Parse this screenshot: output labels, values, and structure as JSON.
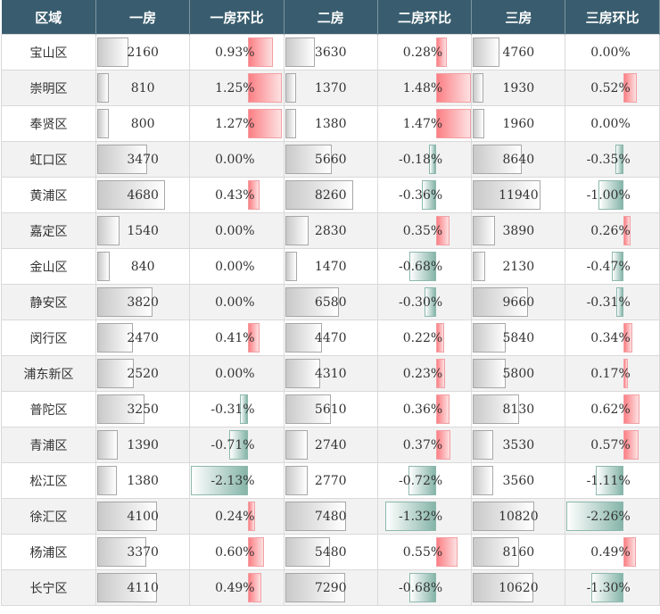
{
  "headers": [
    "区域",
    "一房",
    "一房环比",
    "二房",
    "二房环比",
    "三房",
    "三房环比"
  ],
  "rows": [
    {
      "region": "宝山区",
      "r1": "2160",
      "p1": "0.93%",
      "r2": "3630",
      "p2": "0.28%",
      "r3": "4760",
      "p3": "0.00%"
    },
    {
      "region": "崇明区",
      "r1": "810",
      "p1": "1.25%",
      "r2": "1370",
      "p2": "1.48%",
      "r3": "1930",
      "p3": "0.52%"
    },
    {
      "region": "奉贤区",
      "r1": "800",
      "p1": "1.27%",
      "r2": "1380",
      "p2": "1.47%",
      "r3": "1960",
      "p3": "0.00%"
    },
    {
      "region": "虹口区",
      "r1": "3470",
      "p1": "0.00%",
      "r2": "5660",
      "p2": "-0.18%",
      "r3": "8640",
      "p3": "-0.35%"
    },
    {
      "region": "黄浦区",
      "r1": "4680",
      "p1": "0.43%",
      "r2": "8260",
      "p2": "-0.36%",
      "r3": "11940",
      "p3": "-1.00%"
    },
    {
      "region": "嘉定区",
      "r1": "1540",
      "p1": "0.00%",
      "r2": "2830",
      "p2": "0.35%",
      "r3": "3890",
      "p3": "0.26%"
    },
    {
      "region": "金山区",
      "r1": "840",
      "p1": "0.00%",
      "r2": "1470",
      "p2": "-0.68%",
      "r3": "2130",
      "p3": "-0.47%"
    },
    {
      "region": "静安区",
      "r1": "3820",
      "p1": "0.00%",
      "r2": "6580",
      "p2": "-0.30%",
      "r3": "9660",
      "p3": "-0.31%"
    },
    {
      "region": "闵行区",
      "r1": "2470",
      "p1": "0.41%",
      "r2": "4470",
      "p2": "0.22%",
      "r3": "5840",
      "p3": "0.34%"
    },
    {
      "region": "浦东新区",
      "r1": "2520",
      "p1": "0.00%",
      "r2": "4310",
      "p2": "0.23%",
      "r3": "5800",
      "p3": "0.17%"
    },
    {
      "region": "普陀区",
      "r1": "3250",
      "p1": "-0.31%",
      "r2": "5610",
      "p2": "0.36%",
      "r3": "8130",
      "p3": "0.62%"
    },
    {
      "region": "青浦区",
      "r1": "1390",
      "p1": "-0.71%",
      "r2": "2740",
      "p2": "0.37%",
      "r3": "3530",
      "p3": "0.57%"
    },
    {
      "region": "松江区",
      "r1": "1380",
      "p1": "-2.13%",
      "r2": "2770",
      "p2": "-0.72%",
      "r3": "3560",
      "p3": "-1.11%"
    },
    {
      "region": "徐汇区",
      "r1": "4100",
      "p1": "0.24%",
      "r2": "7480",
      "p2": "-1.32%",
      "r3": "10820",
      "p3": "-2.26%"
    },
    {
      "region": "杨浦区",
      "r1": "3370",
      "p1": "0.60%",
      "r2": "5480",
      "p2": "0.55%",
      "r3": "8160",
      "p3": "0.49%"
    },
    {
      "region": "长宁区",
      "r1": "4110",
      "p1": "0.49%",
      "r2": "7290",
      "p2": "-0.68%",
      "r3": "10620",
      "p3": "-1.30%"
    }
  ],
  "colors": {
    "header_bg": "#395d6e",
    "header_text": "#ffffff",
    "positive_bar": "#f8a1a5",
    "negative_bar": "#86b5a8",
    "value_bar": "#c9c9c9"
  }
}
